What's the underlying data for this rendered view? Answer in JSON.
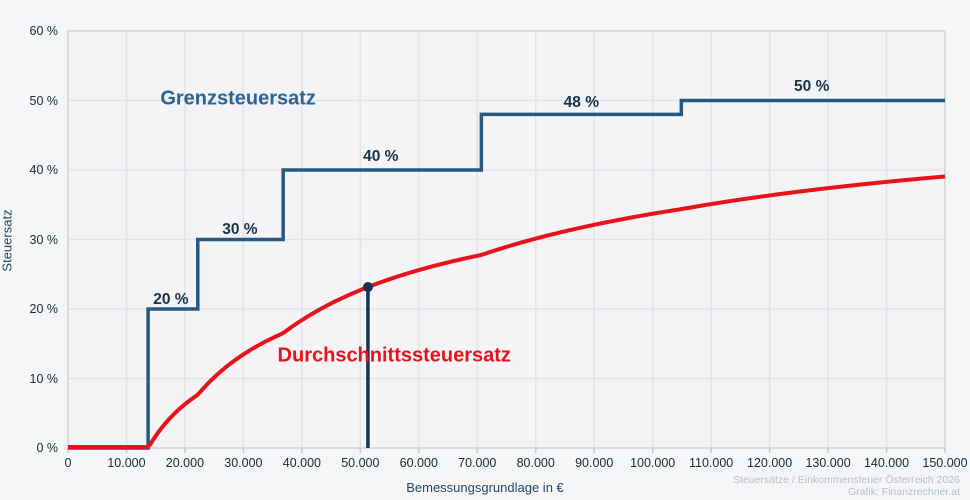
{
  "caption": {
    "line1": "Steuersätze / Einkommensteuer Österreich 2026",
    "line2": "Grafik: Finanzrechner.at"
  },
  "chart_data": {
    "type": "line",
    "title": "",
    "xlabel": "Bemessungsgrundlage in €",
    "ylabel": "Steuersatz",
    "xlim": [
      0,
      150000
    ],
    "ylim": [
      0,
      60
    ],
    "grid": true,
    "x_ticks": [
      0,
      10000,
      20000,
      30000,
      40000,
      50000,
      60000,
      70000,
      80000,
      90000,
      100000,
      110000,
      120000,
      130000,
      140000,
      150000
    ],
    "x_tick_labels": [
      "0",
      "10.000",
      "20.000",
      "30.000",
      "40.000",
      "50.000",
      "60.000",
      "70.000",
      "80.000",
      "90.000",
      "100.000",
      "110.000",
      "120.000",
      "130.000",
      "140.000",
      "150.000"
    ],
    "y_ticks": [
      0,
      10,
      20,
      30,
      40,
      50,
      60
    ],
    "y_tick_labels": [
      "0 %",
      "10 %",
      "20 %",
      "30 %",
      "40 %",
      "50 %",
      "60 %"
    ],
    "colors": {
      "plot_bg": "#f4f4f6",
      "grid": "#e3e4e8",
      "border": "#dadbdf",
      "tick": "#c6c8cc",
      "marker": "#15344f"
    },
    "series": [
      {
        "name": "Grenzsteuersatz",
        "type": "step",
        "color": "#27597e",
        "label_color": "#2a6496",
        "label_anchor": {
          "x": 29100,
          "y": 50.2
        },
        "brackets": [
          {
            "from": 0,
            "to": 13700,
            "rate": 0
          },
          {
            "from": 13700,
            "to": 22200,
            "rate": 20
          },
          {
            "from": 22200,
            "to": 36800,
            "rate": 30
          },
          {
            "from": 36800,
            "to": 70700,
            "rate": 40
          },
          {
            "from": 70700,
            "to": 104900,
            "rate": 48
          },
          {
            "from": 104900,
            "to": 150000,
            "rate": 50
          }
        ],
        "bracket_labels": [
          {
            "text": "20 %",
            "x": 17600,
            "y": 21.3
          },
          {
            "text": "30 %",
            "x": 29400,
            "y": 31.4
          },
          {
            "text": "40 %",
            "x": 53500,
            "y": 41.8
          },
          {
            "text": "48 %",
            "x": 87800,
            "y": 49.6
          },
          {
            "text": "50 %",
            "x": 127200,
            "y": 51.9
          }
        ]
      },
      {
        "name": "Durchschnittssteuersatz",
        "type": "curve_average_of_brackets",
        "color": "#e8121a",
        "label_color": "#e8121a",
        "label_anchor": {
          "x": 55800,
          "y": 13.2
        },
        "sample_values": {
          "20000": 6.3,
          "30000": 13.7,
          "50000": 22.8,
          "51300": 23.2,
          "70000": 28.0,
          "100000": 33.6,
          "150000": 39.1
        }
      }
    ],
    "marker": {
      "x": 51300,
      "y": 23.2
    }
  }
}
